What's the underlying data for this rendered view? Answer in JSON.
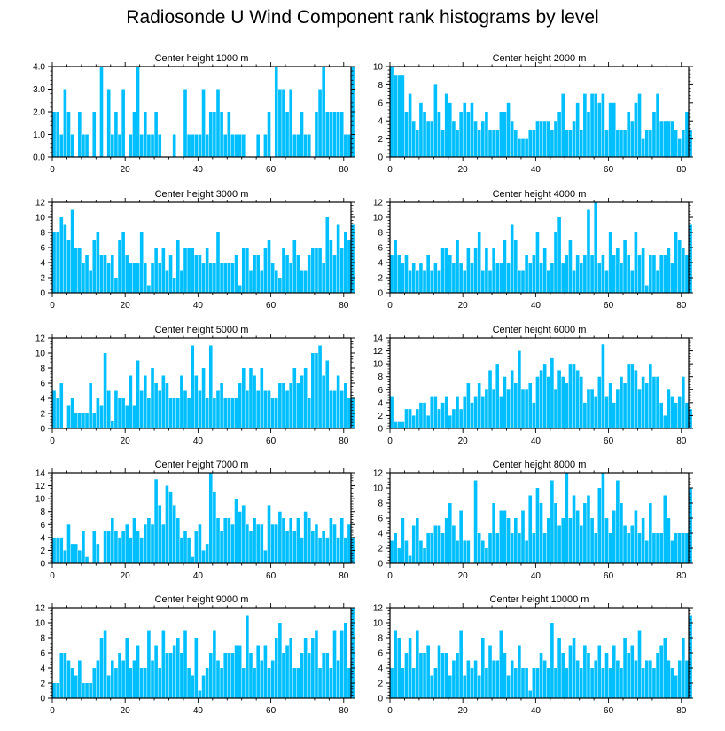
{
  "title": "Radiosonde U Wind Component rank histograms by level",
  "colors": {
    "bar": "#00BFFF",
    "frame": "#000000",
    "background": "#FFFFFF"
  },
  "chart_data": [
    {
      "type": "bar",
      "title": "Center height 1000 m",
      "xlim": [
        0,
        82
      ],
      "ylim": [
        0,
        4
      ],
      "xticks": [
        "0",
        "20",
        "40",
        "60",
        "80"
      ],
      "yticks": [
        "0.0",
        "1.0",
        "2.0",
        "3.0",
        "4.0"
      ],
      "values": [
        2,
        2,
        1,
        3,
        2,
        1,
        0,
        2,
        1,
        1,
        0,
        2,
        0,
        4,
        0,
        3,
        1,
        2,
        1,
        3,
        0,
        1,
        2,
        4,
        1,
        2,
        1,
        1,
        2,
        1,
        0,
        0,
        0,
        1,
        0,
        0,
        3,
        1,
        1,
        1,
        1,
        3,
        1,
        2,
        2,
        3,
        2,
        1,
        2,
        1,
        1,
        1,
        1,
        0,
        0,
        0,
        1,
        0,
        1,
        2,
        0,
        4,
        3,
        3,
        2,
        3,
        1,
        1,
        2,
        1,
        1,
        0,
        2,
        3,
        4,
        2,
        2,
        2,
        2,
        2,
        1,
        1,
        4
      ]
    },
    {
      "type": "bar",
      "title": "Center height 2000 m",
      "xlim": [
        0,
        82
      ],
      "ylim": [
        0,
        10
      ],
      "xticks": [
        "0",
        "20",
        "40",
        "60",
        "80"
      ],
      "yticks": [
        "0",
        "2",
        "4",
        "6",
        "8",
        "10"
      ],
      "values": [
        10,
        9,
        9,
        9,
        5,
        7,
        4,
        3,
        6,
        5,
        4,
        4,
        8,
        5,
        3,
        7,
        6,
        4,
        3,
        5,
        6,
        5,
        6,
        4,
        3,
        4,
        5,
        3,
        3,
        3,
        5,
        5,
        6,
        4,
        3,
        2,
        2,
        2,
        3,
        3,
        4,
        4,
        4,
        4,
        3,
        4,
        5,
        7,
        3,
        3,
        4,
        6,
        3,
        7,
        5,
        7,
        7,
        6,
        7,
        3,
        6,
        6,
        3,
        3,
        3,
        5,
        4,
        6,
        7,
        2,
        3,
        3,
        5,
        7,
        4,
        4,
        4,
        4,
        3,
        2,
        3,
        5,
        3
      ]
    },
    {
      "type": "bar",
      "title": "Center height 3000 m",
      "xlim": [
        0,
        82
      ],
      "ylim": [
        0,
        12
      ],
      "xticks": [
        "0",
        "20",
        "40",
        "60",
        "80"
      ],
      "yticks": [
        "0",
        "2",
        "4",
        "6",
        "8",
        "10",
        "12"
      ],
      "values": [
        8,
        8,
        10,
        9,
        7,
        11,
        6,
        6,
        4,
        5,
        3,
        7,
        8,
        5,
        5,
        4,
        5,
        2,
        7,
        8,
        5,
        4,
        4,
        4,
        8,
        4,
        1,
        4,
        6,
        4,
        6,
        3,
        5,
        2,
        7,
        3,
        6,
        6,
        6,
        5,
        5,
        4,
        6,
        4,
        4,
        8,
        4,
        4,
        4,
        4,
        5,
        1,
        6,
        6,
        3,
        5,
        5,
        3,
        6,
        7,
        4,
        3,
        2,
        6,
        5,
        4,
        7,
        5,
        3,
        3,
        5,
        6,
        6,
        6,
        4,
        10,
        7,
        5,
        9,
        6,
        8,
        7,
        9
      ]
    },
    {
      "type": "bar",
      "title": "Center height 4000 m",
      "xlim": [
        0,
        82
      ],
      "ylim": [
        0,
        12
      ],
      "xticks": [
        "0",
        "20",
        "40",
        "60",
        "80"
      ],
      "yticks": [
        "0",
        "2",
        "4",
        "6",
        "8",
        "10",
        "12"
      ],
      "values": [
        5,
        7,
        5,
        4,
        5,
        3,
        4,
        3,
        4,
        3,
        5,
        3,
        4,
        3,
        6,
        6,
        5,
        4,
        7,
        4,
        3,
        6,
        4,
        6,
        8,
        3,
        6,
        3,
        6,
        4,
        4,
        7,
        4,
        9,
        7,
        3,
        3,
        5,
        4,
        5,
        8,
        4,
        6,
        3,
        4,
        8,
        10,
        4,
        5,
        7,
        3,
        5,
        4,
        5,
        11,
        5,
        12,
        4,
        5,
        3,
        8,
        5,
        6,
        4,
        7,
        5,
        3,
        8,
        5,
        6,
        1,
        5,
        5,
        3,
        5,
        5,
        6,
        4,
        8,
        7,
        6,
        5,
        9
      ]
    },
    {
      "type": "bar",
      "title": "Center height 5000 m",
      "xlim": [
        0,
        82
      ],
      "ylim": [
        0,
        12
      ],
      "xticks": [
        "0",
        "20",
        "40",
        "60",
        "80"
      ],
      "yticks": [
        "0",
        "2",
        "4",
        "6",
        "8",
        "10",
        "12"
      ],
      "values": [
        5,
        4,
        6,
        0,
        3,
        4,
        2,
        2,
        2,
        2,
        6,
        2,
        4,
        3,
        10,
        5,
        1,
        5,
        4,
        4,
        3,
        7,
        3,
        9,
        5,
        7,
        4,
        8,
        6,
        5,
        7,
        6,
        4,
        4,
        4,
        7,
        5,
        4,
        11,
        7,
        5,
        8,
        4,
        11,
        4,
        5,
        6,
        4,
        4,
        4,
        4,
        6,
        8,
        5,
        8,
        7,
        5,
        8,
        5,
        5,
        4,
        4,
        6,
        6,
        5,
        6,
        8,
        6,
        7,
        8,
        4,
        10,
        10,
        11,
        7,
        9,
        5,
        5,
        7,
        5,
        6,
        4,
        4
      ]
    },
    {
      "type": "bar",
      "title": "Center height 6000 m",
      "xlim": [
        0,
        82
      ],
      "ylim": [
        0,
        14
      ],
      "xticks": [
        "0",
        "20",
        "40",
        "60",
        "80"
      ],
      "yticks": [
        "0",
        "2",
        "4",
        "6",
        "8",
        "10",
        "12",
        "14"
      ],
      "values": [
        5,
        1,
        1,
        1,
        3,
        3,
        2,
        3,
        4,
        4,
        2,
        5,
        5,
        3,
        4,
        5,
        2,
        3,
        5,
        3,
        5,
        7,
        4,
        5,
        7,
        5,
        6,
        9,
        6,
        10,
        5,
        8,
        6,
        9,
        7,
        12,
        6,
        6,
        7,
        4,
        8,
        9,
        10,
        8,
        11,
        6,
        9,
        8,
        7,
        10,
        10,
        9,
        8,
        4,
        6,
        6,
        5,
        8,
        13,
        5,
        7,
        4,
        6,
        8,
        7,
        10,
        10,
        9,
        6,
        8,
        7,
        10,
        8,
        8,
        4,
        2,
        6,
        5,
        4,
        5,
        8,
        4,
        3
      ]
    },
    {
      "type": "bar",
      "title": "Center height 7000 m",
      "xlim": [
        0,
        82
      ],
      "ylim": [
        0,
        14
      ],
      "xticks": [
        "0",
        "20",
        "40",
        "60",
        "80"
      ],
      "yticks": [
        "0",
        "2",
        "4",
        "6",
        "8",
        "10",
        "12",
        "14"
      ],
      "values": [
        4,
        4,
        4,
        2,
        6,
        3,
        3,
        2,
        5,
        1,
        0,
        5,
        3,
        0,
        5,
        5,
        7,
        5,
        4,
        5,
        6,
        4,
        7,
        5,
        4,
        6,
        7,
        6,
        13,
        9,
        6,
        12,
        11,
        9,
        7,
        4,
        5,
        4,
        1,
        5,
        6,
        2,
        3,
        14,
        11,
        7,
        5,
        7,
        7,
        6,
        10,
        8,
        9,
        6,
        5,
        7,
        6,
        6,
        2,
        9,
        6,
        6,
        8,
        7,
        5,
        7,
        5,
        7,
        4,
        8,
        7,
        5,
        6,
        4,
        5,
        4,
        7,
        6,
        4,
        7,
        4,
        6,
        4
      ]
    },
    {
      "type": "bar",
      "title": "Center height 8000 m",
      "xlim": [
        0,
        82
      ],
      "ylim": [
        0,
        12
      ],
      "xticks": [
        "0",
        "20",
        "40",
        "60",
        "80"
      ],
      "yticks": [
        "0",
        "2",
        "4",
        "6",
        "8",
        "10",
        "12"
      ],
      "values": [
        3,
        4,
        2,
        6,
        3,
        1,
        5,
        6,
        3,
        2,
        4,
        4,
        5,
        5,
        4,
        6,
        8,
        5,
        3,
        7,
        3,
        3,
        0,
        11,
        4,
        3,
        2,
        4,
        8,
        4,
        7,
        7,
        6,
        4,
        6,
        4,
        7,
        3,
        9,
        4,
        10,
        8,
        4,
        6,
        11,
        8,
        5,
        6,
        12,
        6,
        9,
        7,
        5,
        8,
        9,
        6,
        4,
        10,
        12,
        6,
        4,
        7,
        11,
        8,
        5,
        4,
        5,
        7,
        4,
        6,
        3,
        8,
        4,
        4,
        4,
        9,
        6,
        3,
        4,
        4,
        4,
        4,
        10
      ]
    },
    {
      "type": "bar",
      "title": "Center height 9000 m",
      "xlim": [
        0,
        82
      ],
      "ylim": [
        0,
        12
      ],
      "xticks": [
        "0",
        "20",
        "40",
        "60",
        "80"
      ],
      "yticks": [
        "0",
        "2",
        "4",
        "6",
        "8",
        "10",
        "12"
      ],
      "values": [
        2,
        2,
        6,
        6,
        5,
        4,
        3,
        5,
        2,
        2,
        2,
        4,
        5,
        8,
        9,
        3,
        5,
        4,
        6,
        5,
        8,
        4,
        5,
        7,
        4,
        4,
        9,
        5,
        7,
        4,
        9,
        6,
        6,
        7,
        8,
        6,
        9,
        4,
        3,
        8,
        1,
        3,
        4,
        6,
        9,
        5,
        4,
        6,
        6,
        6,
        7,
        7,
        4,
        11,
        6,
        4,
        7,
        5,
        7,
        4,
        5,
        8,
        10,
        6,
        7,
        8,
        4,
        4,
        6,
        8,
        6,
        8,
        9,
        4,
        6,
        6,
        4,
        9,
        5,
        9,
        10,
        4,
        12
      ]
    },
    {
      "type": "bar",
      "title": "Center height 10000 m",
      "xlim": [
        0,
        82
      ],
      "ylim": [
        0,
        12
      ],
      "xticks": [
        "0",
        "20",
        "40",
        "60",
        "80"
      ],
      "yticks": [
        "0",
        "2",
        "4",
        "6",
        "8",
        "10",
        "12"
      ],
      "values": [
        4,
        9,
        8,
        4,
        6,
        8,
        4,
        9,
        6,
        6,
        7,
        3,
        4,
        7,
        6,
        6,
        3,
        5,
        6,
        9,
        3,
        5,
        4,
        5,
        3,
        8,
        4,
        7,
        5,
        5,
        9,
        6,
        3,
        5,
        4,
        7,
        4,
        4,
        1,
        4,
        4,
        6,
        5,
        4,
        10,
        4,
        8,
        6,
        4,
        7,
        8,
        5,
        4,
        7,
        6,
        4,
        5,
        7,
        4,
        6,
        4,
        7,
        5,
        4,
        8,
        6,
        7,
        5,
        9,
        4,
        5,
        5,
        4,
        6,
        7,
        8,
        5,
        4,
        3,
        5,
        8,
        5,
        11
      ]
    }
  ]
}
